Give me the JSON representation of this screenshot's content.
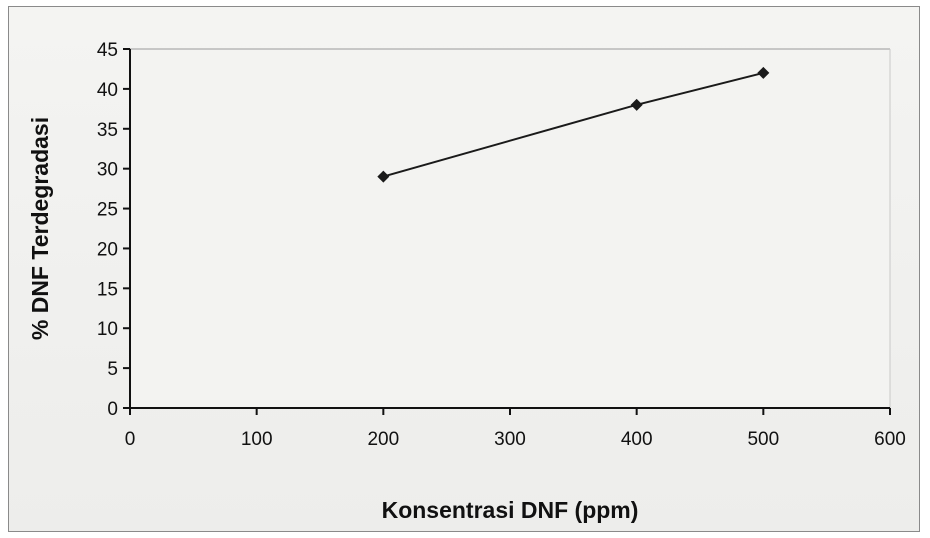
{
  "chart_data": {
    "type": "line",
    "title": "",
    "xlabel": "Konsentrasi DNF (ppm)",
    "ylabel": "% DNF Terdegradasi",
    "xlim": [
      0,
      600
    ],
    "ylim": [
      0,
      45
    ],
    "x_ticks": [
      "0",
      "100",
      "200",
      "300",
      "400",
      "500",
      "600"
    ],
    "y_ticks": [
      "0",
      "5",
      "10",
      "15",
      "20",
      "25",
      "30",
      "35",
      "40",
      "45"
    ],
    "grid": false,
    "legend": "none",
    "series": [
      {
        "x": [
          200,
          400,
          500
        ],
        "y": [
          29,
          38,
          42
        ],
        "marker": "diamond",
        "color": "#1a1a1a"
      }
    ]
  }
}
